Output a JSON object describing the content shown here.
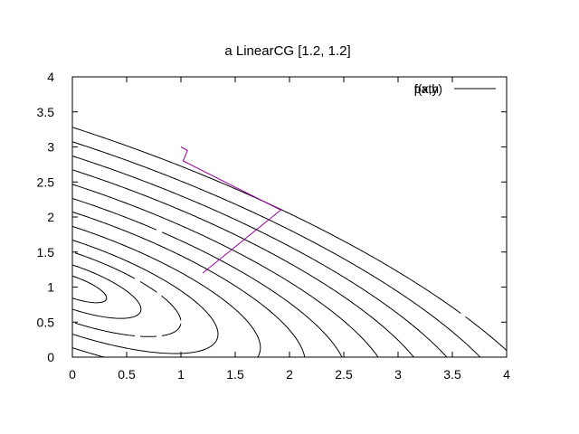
{
  "chart_data": {
    "type": "line",
    "title": "a LinearCG [1.2, 1.2]",
    "xlabel": "",
    "ylabel": "",
    "xlim": [
      0,
      4
    ],
    "ylim": [
      0,
      4
    ],
    "xticks": [
      "0",
      "0.5",
      "1",
      "1.5",
      "2",
      "2.5",
      "3",
      "3.5",
      "4"
    ],
    "yticks": [
      "0",
      "0.5",
      "1",
      "1.5",
      "2",
      "2.5",
      "3",
      "3.5",
      "4"
    ],
    "legend_position": "top-right",
    "legend": [
      "f(x,y)",
      "path"
    ],
    "contour": {
      "function": "x^2 + 2xy + 2y^2 - 2x - 4y + 2",
      "levels": [
        0.05,
        0.2,
        0.5,
        0.9,
        1.5,
        2.3,
        3.2,
        4.3,
        5.6,
        7.0,
        8.6,
        10.4
      ]
    },
    "series": [
      {
        "name": "path",
        "color": "#990099",
        "x": [
          1.2,
          1.92,
          1.02,
          1.06,
          1.0
        ],
        "y": [
          1.2,
          2.1,
          2.8,
          2.95,
          3.0
        ]
      }
    ]
  }
}
